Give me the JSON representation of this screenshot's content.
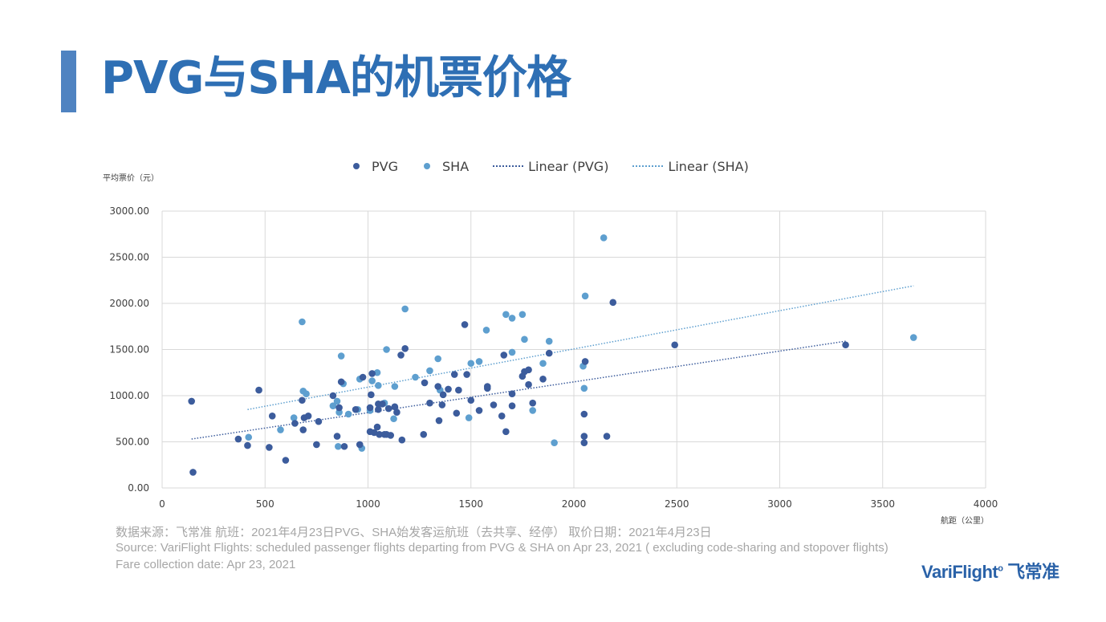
{
  "page": {
    "title": "PVG与SHA的机票价格",
    "footer_cn": "数据来源：飞常准    航班：2021年4月23日PVG、SHA始发客运航班（去共享、经停）     取价日期：2021年4月23日",
    "footer_en": "Source: VariFlight     Flights: scheduled passenger flights departing from  PVG & SHA  on Apr 23, 2021 (   excluding code-sharing and stopover flights)",
    "footer_date": "Fare collection date: Apr 23, 2021",
    "logo_text": "VariFlight",
    "logo_cn": "飞常准"
  },
  "chart_data": {
    "type": "scatter",
    "title": "",
    "xlabel": "航距（公里）",
    "ylabel": "平均票价（元）",
    "xlim": [
      0,
      4000
    ],
    "ylim": [
      0,
      3000
    ],
    "x_ticks": [
      "0",
      "500",
      "1000",
      "1500",
      "2000",
      "2500",
      "3000",
      "3500",
      "4000"
    ],
    "y_ticks": [
      "0.00",
      "500.00",
      "1000.00",
      "1500.00",
      "2000.00",
      "2500.00",
      "3000.00"
    ],
    "grid": true,
    "legend_position": "top",
    "legend": [
      "PVG",
      "SHA",
      "Linear (PVG)",
      "Linear (SHA)"
    ],
    "series": [
      {
        "name": "PVG",
        "color": "#3c5c9c",
        "points": [
          [
            143,
            940
          ],
          [
            150,
            170
          ],
          [
            370,
            530
          ],
          [
            415,
            460
          ],
          [
            470,
            1060
          ],
          [
            520,
            440
          ],
          [
            535,
            780
          ],
          [
            600,
            300
          ],
          [
            645,
            700
          ],
          [
            680,
            950
          ],
          [
            685,
            630
          ],
          [
            690,
            760
          ],
          [
            710,
            780
          ],
          [
            750,
            470
          ],
          [
            760,
            720
          ],
          [
            830,
            1000
          ],
          [
            850,
            560
          ],
          [
            860,
            870
          ],
          [
            870,
            1150
          ],
          [
            885,
            450
          ],
          [
            940,
            850
          ],
          [
            960,
            470
          ],
          [
            975,
            1200
          ],
          [
            1010,
            870
          ],
          [
            1010,
            610
          ],
          [
            1015,
            1010
          ],
          [
            1020,
            1240
          ],
          [
            1030,
            600
          ],
          [
            1045,
            660
          ],
          [
            1050,
            910
          ],
          [
            1050,
            850
          ],
          [
            1055,
            580
          ],
          [
            1070,
            910
          ],
          [
            1080,
            580
          ],
          [
            1090,
            580
          ],
          [
            1100,
            860
          ],
          [
            1110,
            570
          ],
          [
            1130,
            880
          ],
          [
            1140,
            820
          ],
          [
            1160,
            1440
          ],
          [
            1165,
            520
          ],
          [
            1180,
            1510
          ],
          [
            1270,
            580
          ],
          [
            1275,
            1140
          ],
          [
            1300,
            920
          ],
          [
            1340,
            1100
          ],
          [
            1345,
            730
          ],
          [
            1360,
            900
          ],
          [
            1365,
            1010
          ],
          [
            1390,
            1070
          ],
          [
            1420,
            1230
          ],
          [
            1430,
            810
          ],
          [
            1440,
            1060
          ],
          [
            1470,
            1770
          ],
          [
            1480,
            1230
          ],
          [
            1500,
            950
          ],
          [
            1540,
            840
          ],
          [
            1580,
            1080
          ],
          [
            1580,
            1100
          ],
          [
            1610,
            900
          ],
          [
            1650,
            780
          ],
          [
            1660,
            1440
          ],
          [
            1670,
            610
          ],
          [
            1700,
            1020
          ],
          [
            1700,
            890
          ],
          [
            1750,
            1210
          ],
          [
            1760,
            1260
          ],
          [
            1780,
            1280
          ],
          [
            1780,
            1120
          ],
          [
            1800,
            920
          ],
          [
            1850,
            1180
          ],
          [
            1880,
            1460
          ],
          [
            2050,
            800
          ],
          [
            2050,
            560
          ],
          [
            2050,
            490
          ],
          [
            2055,
            1370
          ],
          [
            2160,
            560
          ],
          [
            2190,
            2010
          ],
          [
            2490,
            1550
          ],
          [
            3320,
            1550
          ]
        ]
      },
      {
        "name": "SHA",
        "color": "#5e9fcf",
        "points": [
          [
            420,
            550
          ],
          [
            575,
            630
          ],
          [
            640,
            760
          ],
          [
            680,
            1800
          ],
          [
            685,
            1050
          ],
          [
            700,
            1020
          ],
          [
            830,
            890
          ],
          [
            850,
            940
          ],
          [
            855,
            450
          ],
          [
            860,
            820
          ],
          [
            870,
            1430
          ],
          [
            880,
            1130
          ],
          [
            905,
            800
          ],
          [
            950,
            850
          ],
          [
            960,
            1180
          ],
          [
            970,
            430
          ],
          [
            1010,
            840
          ],
          [
            1020,
            1160
          ],
          [
            1045,
            1250
          ],
          [
            1050,
            1110
          ],
          [
            1080,
            920
          ],
          [
            1090,
            1500
          ],
          [
            1125,
            750
          ],
          [
            1130,
            1100
          ],
          [
            1180,
            1940
          ],
          [
            1230,
            1200
          ],
          [
            1300,
            1270
          ],
          [
            1340,
            1400
          ],
          [
            1350,
            1060
          ],
          [
            1490,
            760
          ],
          [
            1500,
            1350
          ],
          [
            1540,
            1370
          ],
          [
            1575,
            1710
          ],
          [
            1670,
            1880
          ],
          [
            1700,
            1840
          ],
          [
            1700,
            1470
          ],
          [
            1750,
            1880
          ],
          [
            1760,
            1610
          ],
          [
            1800,
            840
          ],
          [
            1850,
            1350
          ],
          [
            1880,
            1590
          ],
          [
            1905,
            490
          ],
          [
            2045,
            1320
          ],
          [
            2050,
            1080
          ],
          [
            2055,
            2080
          ],
          [
            2145,
            2710
          ],
          [
            3650,
            1630
          ]
        ]
      }
    ],
    "trendlines": [
      {
        "name": "Linear (PVG)",
        "color": "#3c5c9c",
        "x": [
          143,
          3320
        ],
        "y": [
          530,
          1590
        ]
      },
      {
        "name": "Linear (SHA)",
        "color": "#5e9fcf",
        "x": [
          415,
          3650
        ],
        "y": [
          850,
          2190
        ]
      }
    ]
  }
}
